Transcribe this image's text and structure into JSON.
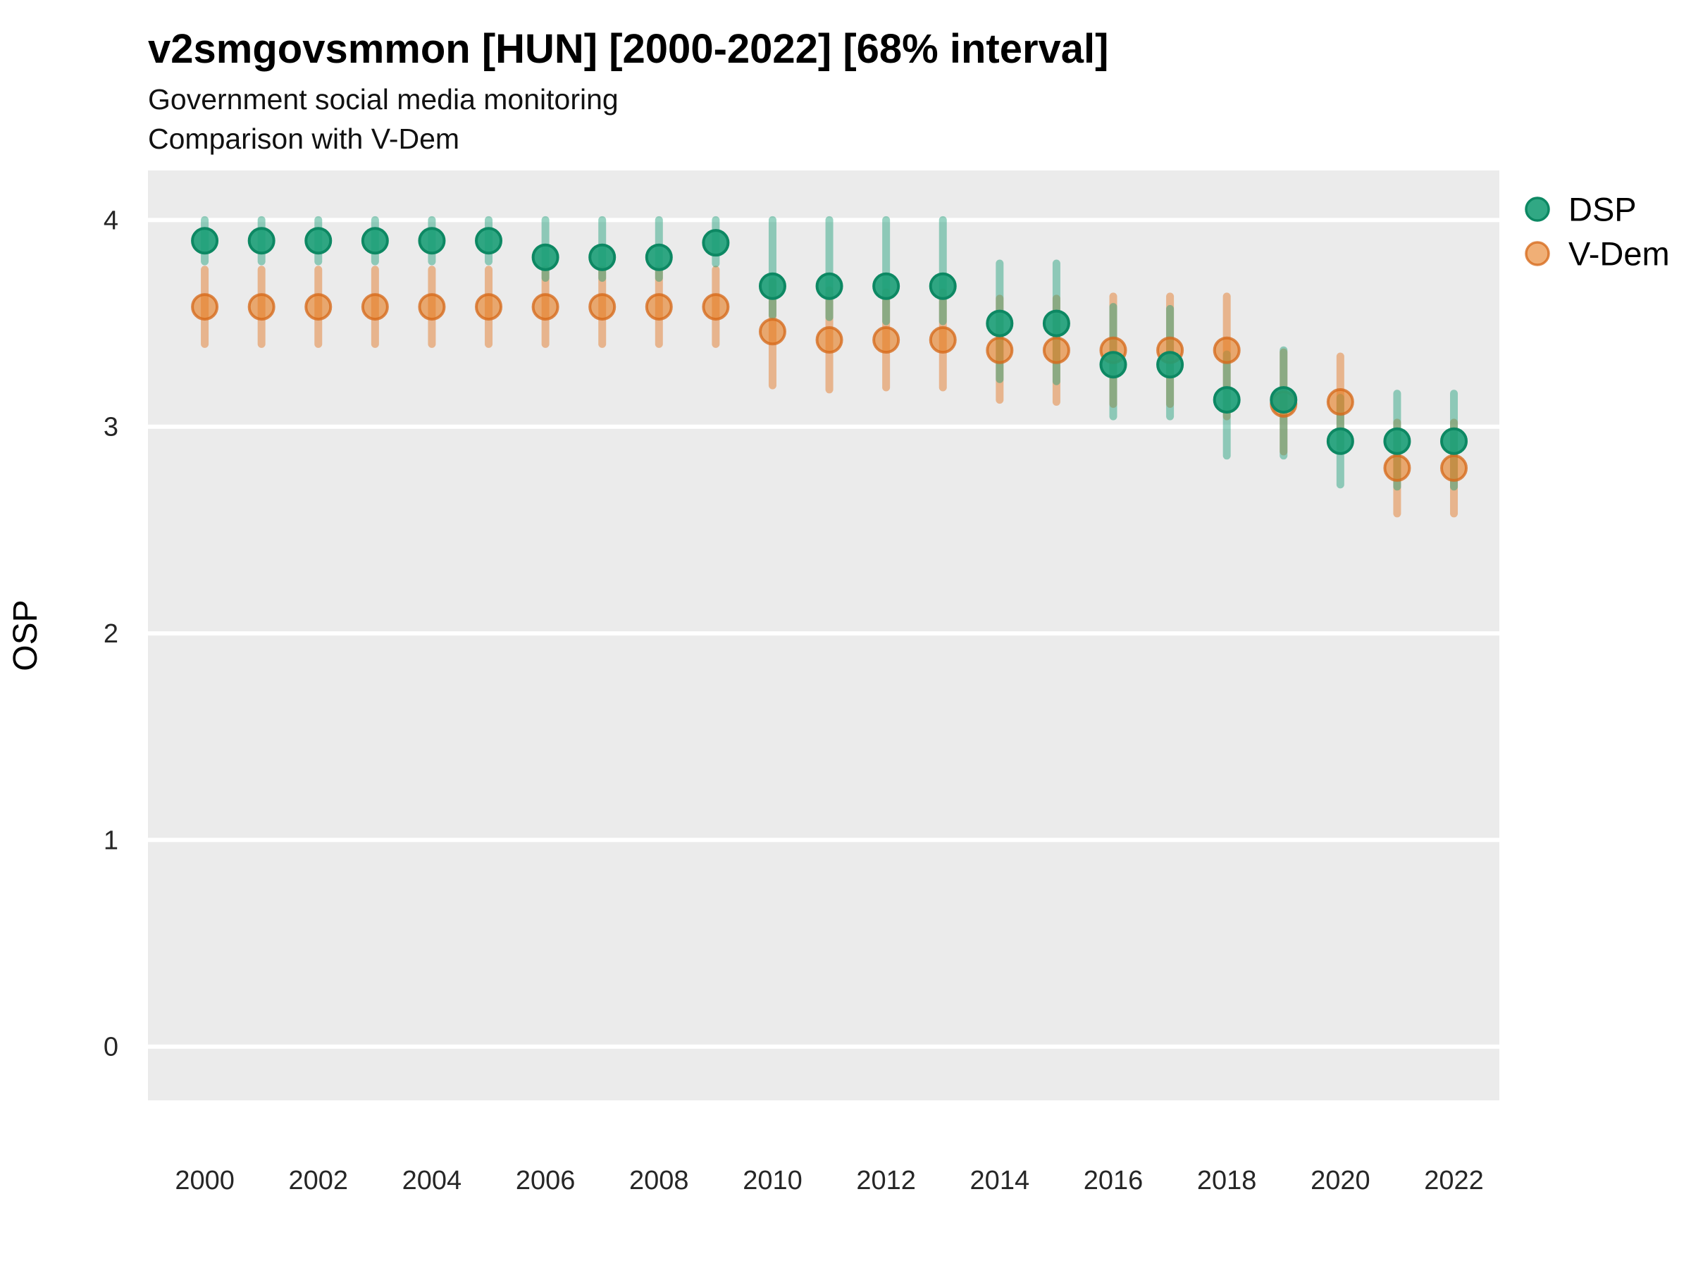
{
  "header": {
    "title": "v2smgovsmmon [HUN] [2000-2022] [68% interval]",
    "subtitle_line1": "Government social media monitoring",
    "subtitle_line2": "Comparison with V-Dem"
  },
  "legend": {
    "position": "right",
    "items": [
      {
        "label": "DSP",
        "color": "#1b9e77"
      },
      {
        "label": "V-Dem",
        "color": "#e07e22"
      }
    ]
  },
  "axes": {
    "y_label": "OSP",
    "y_ticks": [
      0,
      1,
      2,
      3,
      4
    ],
    "x_ticks": [
      2000,
      2002,
      2004,
      2006,
      2008,
      2010,
      2012,
      2014,
      2016,
      2018,
      2020,
      2022
    ]
  },
  "colors": {
    "panel_background": "#EBEBEB",
    "gridline": "#FFFFFF",
    "dsp_point_fill": "rgba(27,158,119,0.9)",
    "dsp_point_stroke": "rgba(13,136,99,1)",
    "dsp_bar": "rgba(27,158,119,0.45)",
    "vdem_point_fill": "rgba(230,126,34,0.62)",
    "vdem_point_stroke": "rgba(214,105,25,0.78)",
    "vdem_bar": "rgba(228,126,48,0.5)",
    "text": "#262626"
  },
  "chart_data": {
    "type": "scatter",
    "title": "v2smgovsmmon [HUN] [2000-2022] [68% interval]",
    "subtitle1": "Government social media monitoring",
    "subtitle2": "Comparison with V-Dem",
    "xlabel": "",
    "ylabel": "OSP",
    "interval": "68%",
    "xlim": [
      1999.0,
      2022.8
    ],
    "ylim": [
      -0.26,
      4.24
    ],
    "grid": "horizontal-major-only",
    "legend_position": "right",
    "x": [
      2000,
      2001,
      2002,
      2003,
      2004,
      2005,
      2006,
      2007,
      2008,
      2009,
      2010,
      2011,
      2012,
      2013,
      2014,
      2015,
      2016,
      2017,
      2018,
      2019,
      2020,
      2021,
      2022
    ],
    "series": [
      {
        "name": "V-Dem",
        "role": "interval-points",
        "points": [
          {
            "year": 2000,
            "value": 3.58,
            "lo": 3.4,
            "hi": 3.76
          },
          {
            "year": 2001,
            "value": 3.58,
            "lo": 3.4,
            "hi": 3.76
          },
          {
            "year": 2002,
            "value": 3.58,
            "lo": 3.4,
            "hi": 3.76
          },
          {
            "year": 2003,
            "value": 3.58,
            "lo": 3.4,
            "hi": 3.76
          },
          {
            "year": 2004,
            "value": 3.58,
            "lo": 3.4,
            "hi": 3.76
          },
          {
            "year": 2005,
            "value": 3.58,
            "lo": 3.4,
            "hi": 3.76
          },
          {
            "year": 2006,
            "value": 3.58,
            "lo": 3.4,
            "hi": 3.76
          },
          {
            "year": 2007,
            "value": 3.58,
            "lo": 3.4,
            "hi": 3.76
          },
          {
            "year": 2008,
            "value": 3.58,
            "lo": 3.4,
            "hi": 3.76
          },
          {
            "year": 2009,
            "value": 3.58,
            "lo": 3.4,
            "hi": 3.76
          },
          {
            "year": 2010,
            "value": 3.46,
            "lo": 3.2,
            "hi": 3.7
          },
          {
            "year": 2011,
            "value": 3.42,
            "lo": 3.18,
            "hi": 3.66
          },
          {
            "year": 2012,
            "value": 3.42,
            "lo": 3.19,
            "hi": 3.65
          },
          {
            "year": 2013,
            "value": 3.42,
            "lo": 3.19,
            "hi": 3.65
          },
          {
            "year": 2014,
            "value": 3.37,
            "lo": 3.13,
            "hi": 3.62
          },
          {
            "year": 2015,
            "value": 3.37,
            "lo": 3.12,
            "hi": 3.62
          },
          {
            "year": 2016,
            "value": 3.37,
            "lo": 3.11,
            "hi": 3.63
          },
          {
            "year": 2017,
            "value": 3.37,
            "lo": 3.11,
            "hi": 3.63
          },
          {
            "year": 2018,
            "value": 3.37,
            "lo": 3.05,
            "hi": 3.63
          },
          {
            "year": 2019,
            "value": 3.11,
            "lo": 2.88,
            "hi": 3.36
          },
          {
            "year": 2020,
            "value": 3.12,
            "lo": 2.9,
            "hi": 3.34
          },
          {
            "year": 2021,
            "value": 2.8,
            "lo": 2.58,
            "hi": 3.02
          },
          {
            "year": 2022,
            "value": 2.8,
            "lo": 2.58,
            "hi": 3.02
          }
        ]
      },
      {
        "name": "DSP",
        "role": "interval-points",
        "points": [
          {
            "year": 2000,
            "value": 3.9,
            "lo": 3.8,
            "hi": 4.0
          },
          {
            "year": 2001,
            "value": 3.9,
            "lo": 3.8,
            "hi": 4.0
          },
          {
            "year": 2002,
            "value": 3.9,
            "lo": 3.8,
            "hi": 4.0
          },
          {
            "year": 2003,
            "value": 3.9,
            "lo": 3.8,
            "hi": 4.0
          },
          {
            "year": 2004,
            "value": 3.9,
            "lo": 3.8,
            "hi": 4.0
          },
          {
            "year": 2005,
            "value": 3.9,
            "lo": 3.8,
            "hi": 4.0
          },
          {
            "year": 2006,
            "value": 3.82,
            "lo": 3.72,
            "hi": 4.0
          },
          {
            "year": 2007,
            "value": 3.82,
            "lo": 3.72,
            "hi": 4.0
          },
          {
            "year": 2008,
            "value": 3.82,
            "lo": 3.72,
            "hi": 4.0
          },
          {
            "year": 2009,
            "value": 3.89,
            "lo": 3.79,
            "hi": 4.0
          },
          {
            "year": 2010,
            "value": 3.68,
            "lo": 3.54,
            "hi": 4.0
          },
          {
            "year": 2011,
            "value": 3.68,
            "lo": 3.53,
            "hi": 4.0
          },
          {
            "year": 2012,
            "value": 3.68,
            "lo": 3.51,
            "hi": 4.0
          },
          {
            "year": 2013,
            "value": 3.68,
            "lo": 3.51,
            "hi": 4.0
          },
          {
            "year": 2014,
            "value": 3.5,
            "lo": 3.23,
            "hi": 3.79
          },
          {
            "year": 2015,
            "value": 3.5,
            "lo": 3.22,
            "hi": 3.79
          },
          {
            "year": 2016,
            "value": 3.3,
            "lo": 3.05,
            "hi": 3.58
          },
          {
            "year": 2017,
            "value": 3.3,
            "lo": 3.05,
            "hi": 3.57
          },
          {
            "year": 2018,
            "value": 3.13,
            "lo": 2.86,
            "hi": 3.35
          },
          {
            "year": 2019,
            "value": 3.13,
            "lo": 2.86,
            "hi": 3.37
          },
          {
            "year": 2020,
            "value": 2.93,
            "lo": 2.72,
            "hi": 3.14
          },
          {
            "year": 2021,
            "value": 2.93,
            "lo": 2.71,
            "hi": 3.16
          },
          {
            "year": 2022,
            "value": 2.93,
            "lo": 2.71,
            "hi": 3.16
          }
        ]
      }
    ]
  }
}
